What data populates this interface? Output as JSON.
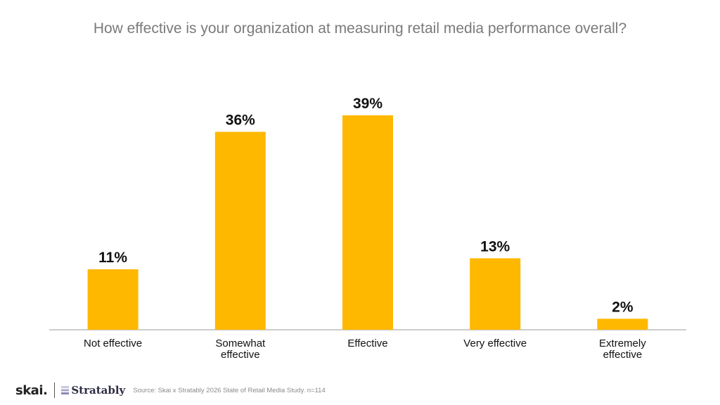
{
  "chart_data": {
    "type": "bar",
    "title": "How effective is your organization at measuring retail media performance overall?",
    "categories": [
      [
        "Not effective"
      ],
      [
        "Somewhat",
        "effective"
      ],
      [
        "Effective"
      ],
      [
        "Very effective"
      ],
      [
        "Extremely",
        "effective"
      ]
    ],
    "values": [
      11,
      36,
      39,
      13,
      2
    ],
    "value_labels": [
      "11%",
      "36%",
      "39%",
      "13%",
      "2%"
    ],
    "ylim": [
      0,
      40
    ],
    "grid": false,
    "legend": "none",
    "bar_color": "#FFB800",
    "axis_color": "#9a9a9a"
  },
  "footer": {
    "skai_logo": "skai.",
    "stratably_logo": "Stratably",
    "source": "Source: Skai x Stratably 2026 State of Retail Media Study. n=114"
  }
}
